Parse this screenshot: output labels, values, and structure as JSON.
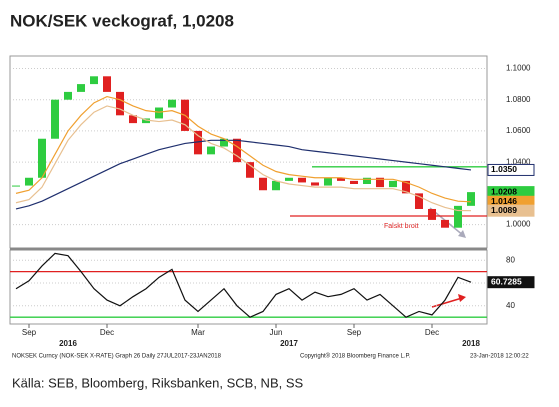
{
  "title": "NOK/SEK veckograf, 1,0208",
  "source": "Källa: SEB, Bloomberg, Riksbanken, SCB, NB, SS",
  "footer": {
    "left": "NOKSEK Curncy (NOK-SEK X-RATE) Graph 26  Daily 27JUL2017-23JAN2018",
    "center": "Copyright® 2018 Bloomberg Finance L.P.",
    "right": "23-Jan-2018 12:00:22"
  },
  "chart_data": [
    {
      "type": "candlestick",
      "annotation": "Falskt brott",
      "ylim": [
        0.985,
        1.108
      ],
      "yticks": [
        {
          "value": 1.0,
          "label": "1.0000"
        },
        {
          "value": 1.04,
          "label": "1.0400"
        },
        {
          "value": 1.06,
          "label": "1.0600"
        },
        {
          "value": 1.08,
          "label": "1.0800"
        },
        {
          "value": 1.1,
          "label": "1.1000"
        }
      ],
      "levels": [
        {
          "value": 1.037,
          "color": "#2ecc40"
        },
        {
          "value": 1.0055,
          "color": "#e02020"
        }
      ],
      "series": [
        {
          "name": "NOKSEK",
          "color": "#2ecc40",
          "down_color": "#e02020",
          "end_label": "1.0208",
          "values": [
            1.025,
            1.03,
            1.055,
            1.08,
            1.085,
            1.09,
            1.095,
            1.085,
            1.07,
            1.065,
            1.068,
            1.075,
            1.08,
            1.06,
            1.045,
            1.05,
            1.055,
            1.04,
            1.03,
            1.022,
            1.028,
            1.03,
            1.027,
            1.025,
            1.03,
            1.028,
            1.026,
            1.03,
            1.024,
            1.028,
            1.02,
            1.01,
            1.003,
            0.998,
            1.012,
            1.0208
          ]
        },
        {
          "name": "MA long",
          "color": "#1f2f6e",
          "end_label": "1.0350",
          "values": [
            1.01,
            1.012,
            1.015,
            1.019,
            1.023,
            1.027,
            1.031,
            1.035,
            1.039,
            1.042,
            1.045,
            1.048,
            1.05,
            1.052,
            1.053,
            1.054,
            1.054,
            1.054,
            1.053,
            1.052,
            1.051,
            1.05,
            1.048,
            1.047,
            1.046,
            1.045,
            1.044,
            1.043,
            1.042,
            1.041,
            1.04,
            1.039,
            1.038,
            1.037,
            1.036,
            1.035
          ]
        },
        {
          "name": "MA upper",
          "color": "#f0a030",
          "end_label": "1.0146",
          "values": [
            1.02,
            1.022,
            1.03,
            1.045,
            1.06,
            1.07,
            1.078,
            1.082,
            1.08,
            1.076,
            1.073,
            1.072,
            1.073,
            1.07,
            1.063,
            1.058,
            1.055,
            1.05,
            1.044,
            1.038,
            1.034,
            1.032,
            1.031,
            1.03,
            1.03,
            1.03,
            1.029,
            1.029,
            1.029,
            1.029,
            1.027,
            1.024,
            1.02,
            1.017,
            1.015,
            1.0146
          ]
        },
        {
          "name": "MA lower",
          "color": "#e8c090",
          "end_label": "1.0089",
          "values": [
            1.014,
            1.016,
            1.024,
            1.039,
            1.054,
            1.064,
            1.072,
            1.076,
            1.074,
            1.07,
            1.067,
            1.066,
            1.067,
            1.064,
            1.057,
            1.052,
            1.049,
            1.044,
            1.038,
            1.032,
            1.028,
            1.026,
            1.025,
            1.024,
            1.024,
            1.024,
            1.023,
            1.023,
            1.023,
            1.023,
            1.021,
            1.018,
            1.014,
            1.011,
            1.009,
            1.0089
          ]
        }
      ]
    },
    {
      "type": "line",
      "categories": [
        null,
        "Sep",
        null,
        null,
        null,
        null,
        null,
        "Dec",
        null,
        null,
        null,
        null,
        null,
        null,
        "Mar",
        null,
        null,
        null,
        null,
        null,
        "Jun",
        null,
        null,
        null,
        null,
        null,
        "Sep",
        null,
        null,
        null,
        null,
        null,
        "Dec",
        null,
        null,
        null
      ],
      "years": [
        null,
        null,
        null,
        null,
        "2016",
        null,
        null,
        null,
        null,
        null,
        null,
        null,
        null,
        null,
        null,
        null,
        null,
        null,
        null,
        null,
        null,
        "2017",
        null,
        null,
        null,
        null,
        null,
        null,
        null,
        null,
        null,
        null,
        null,
        null,
        null,
        "2018"
      ],
      "ylim": [
        24,
        89
      ],
      "yticks": [
        40,
        60,
        80
      ],
      "levels": [
        {
          "value": 70,
          "color": "#e02020"
        },
        {
          "value": 30,
          "color": "#2ecc40"
        }
      ],
      "series": [
        {
          "name": "RSI",
          "color": "#111",
          "end_label": "60.7285",
          "values": [
            55,
            62,
            75,
            86,
            84,
            70,
            55,
            45,
            40,
            48,
            55,
            65,
            72,
            45,
            35,
            45,
            55,
            40,
            30,
            35,
            50,
            55,
            45,
            52,
            48,
            50,
            55,
            45,
            50,
            40,
            30,
            35,
            32,
            45,
            65,
            60.7285
          ]
        }
      ]
    }
  ]
}
